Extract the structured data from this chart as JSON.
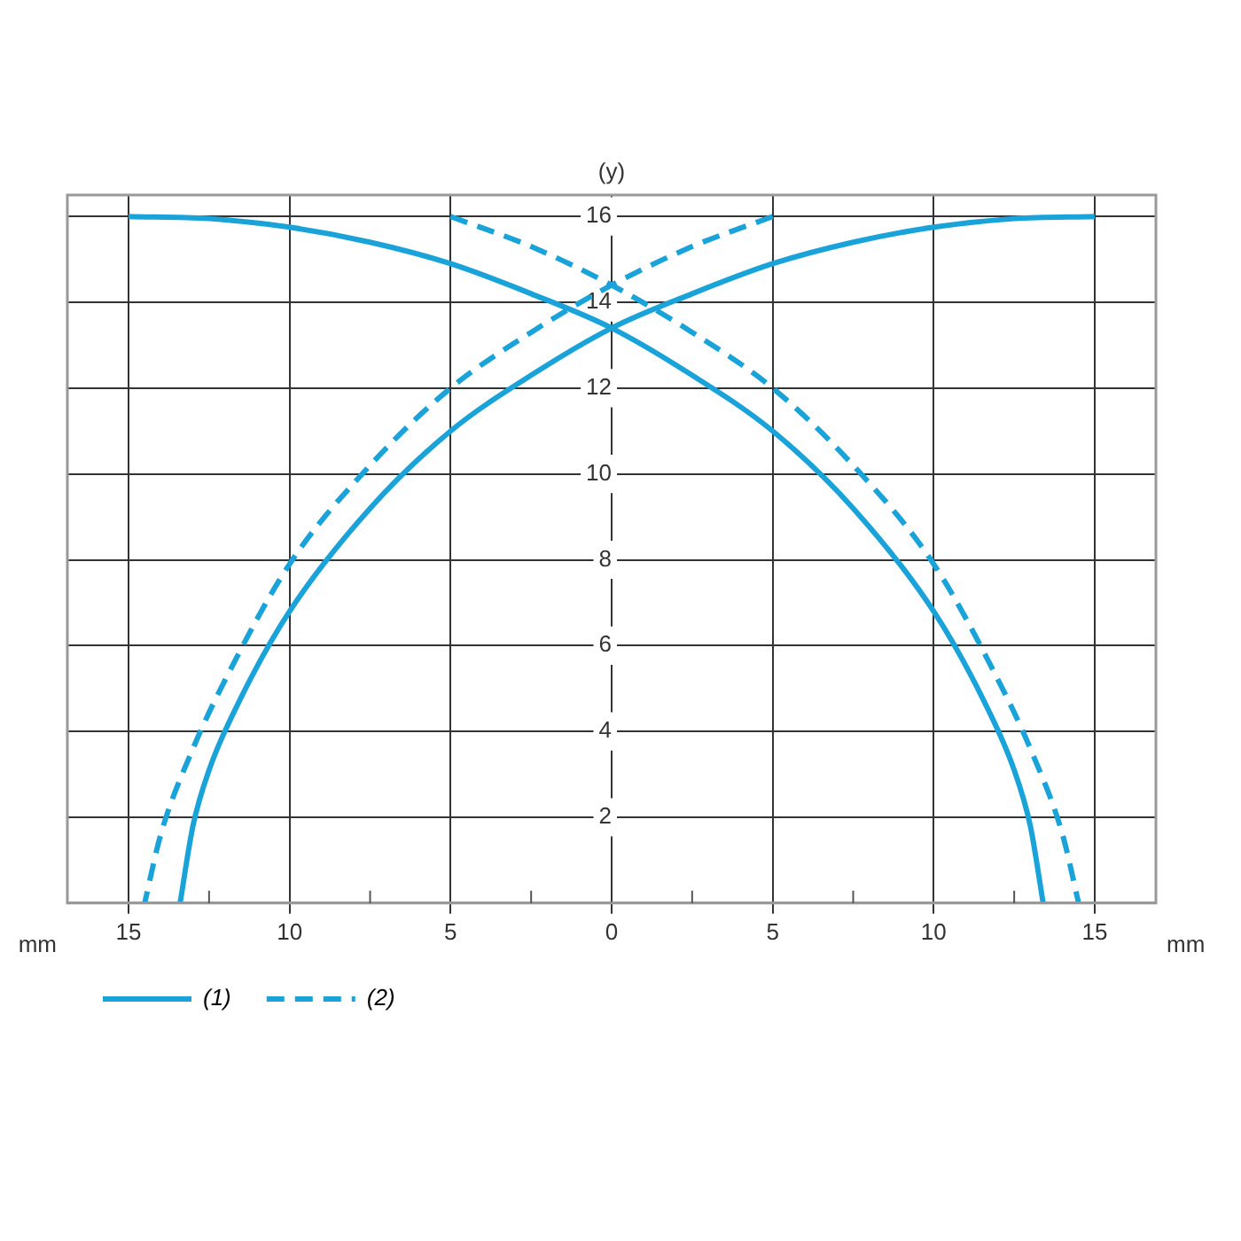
{
  "chart_data": {
    "type": "line",
    "ylabel": "(y)",
    "xlabel": "mm",
    "xlim": [
      -16.9,
      16.9
    ],
    "ylim": [
      0,
      16.5
    ],
    "xticks": [
      {
        "value": -15,
        "label": "15"
      },
      {
        "value": -12.5,
        "label": null
      },
      {
        "value": -10,
        "label": "10"
      },
      {
        "value": -7.5,
        "label": null
      },
      {
        "value": -5,
        "label": "5"
      },
      {
        "value": -2.5,
        "label": null
      },
      0,
      {
        "value": 2.5,
        "label": null
      },
      5,
      {
        "value": 7.5,
        "label": null
      },
      10,
      {
        "value": 12.5,
        "label": null
      },
      15
    ],
    "yticks": [
      2,
      4,
      6,
      8,
      10,
      12,
      14,
      16
    ],
    "grid": true,
    "legend": "bottom left",
    "marker": "none",
    "series": [
      {
        "name": "(1)",
        "color": "#1aa3d9",
        "line_style": "solid",
        "x": [
          -15,
          -12.5,
          -10,
          -7.5,
          -5,
          -2.5,
          0,
          2.5,
          5,
          7.5,
          10,
          11.5,
          12.5,
          13,
          13.4
        ],
        "values": [
          16,
          15.95,
          15.75,
          15.4,
          14.9,
          14.2,
          13.4,
          12.3,
          11,
          9.2,
          6.8,
          4.8,
          3.1,
          1.8,
          0
        ]
      },
      {
        "color": "#1aa3d9",
        "line_style": "solid",
        "x": [
          15,
          12.5,
          10,
          7.5,
          5,
          2.5,
          0,
          -2.5,
          -5,
          -7.5,
          -10,
          -11.5,
          -12.5,
          -13,
          -13.4
        ],
        "values": [
          16,
          15.95,
          15.75,
          15.4,
          14.9,
          14.2,
          13.4,
          12.3,
          11,
          9.2,
          6.8,
          4.8,
          3.1,
          1.8,
          0
        ]
      },
      {
        "name": "(2)",
        "color": "#1aa3d9",
        "line_style": "dashed",
        "x": [
          -5,
          -2.5,
          0,
          2.5,
          5,
          7.5,
          10,
          12,
          13,
          14,
          14.5
        ],
        "values": [
          16,
          15.3,
          14.4,
          13.3,
          12,
          10.2,
          7.9,
          5.2,
          3.6,
          1.6,
          0
        ]
      },
      {
        "color": "#1aa3d9",
        "line_style": "dashed",
        "x": [
          5,
          2.5,
          0,
          -2.5,
          -5,
          -7.5,
          -10,
          -12,
          -13,
          -14,
          -14.5
        ],
        "values": [
          16,
          15.3,
          14.4,
          13.3,
          12,
          10.2,
          7.9,
          5.2,
          3.6,
          1.6,
          0
        ]
      }
    ]
  }
}
